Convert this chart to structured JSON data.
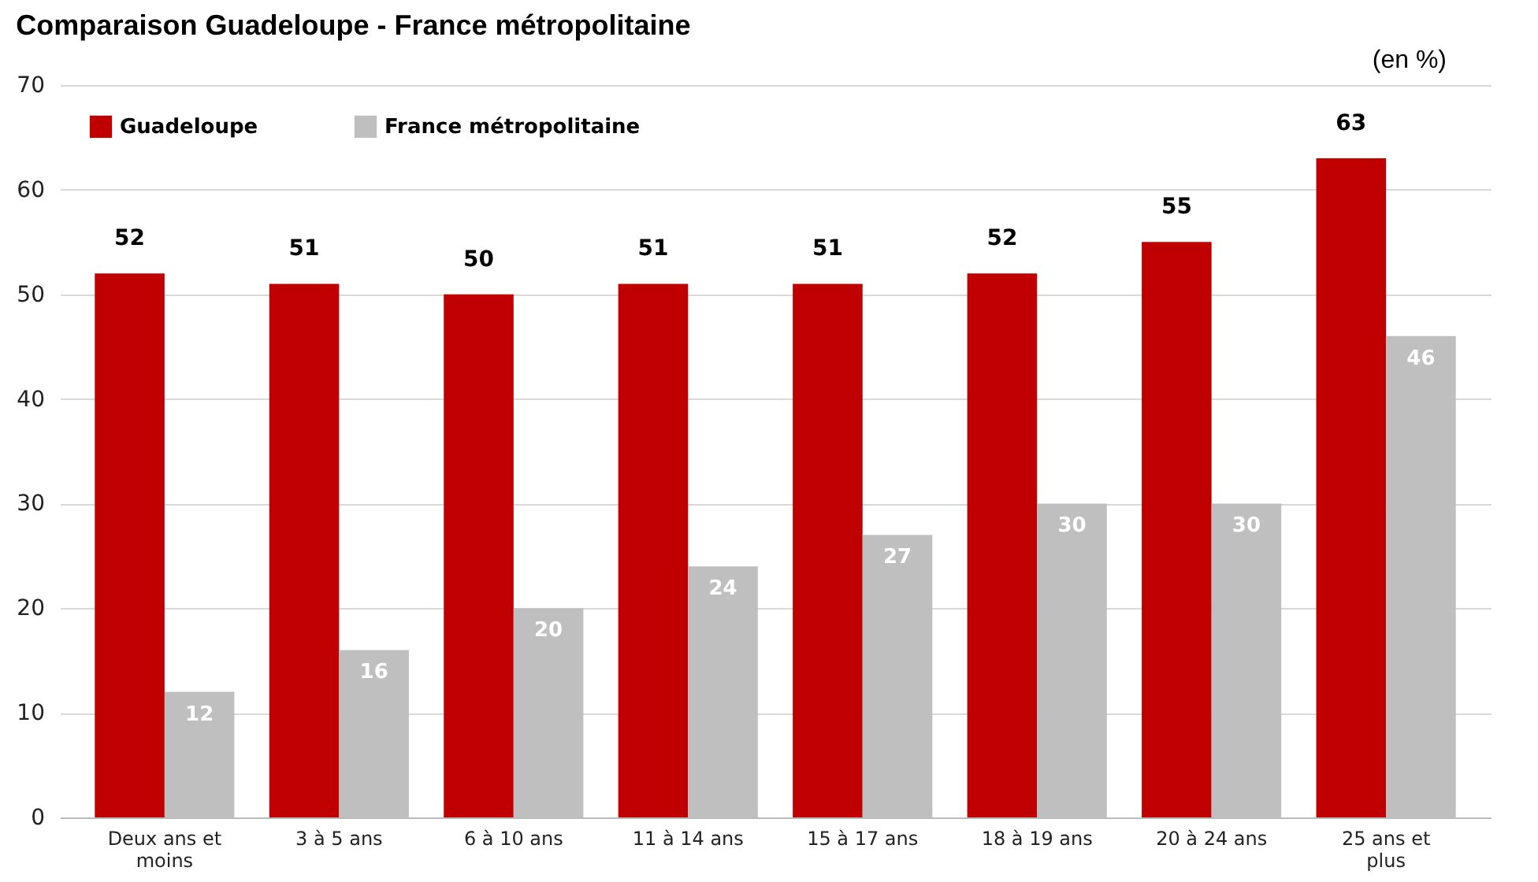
{
  "chart_data": {
    "type": "bar",
    "title": "Comparaison Guadeloupe - France métropolitaine",
    "annotations": [
      "(en %)"
    ],
    "categories": [
      "Deux ans et moins",
      "3 à 5 ans",
      "6 à 10 ans",
      "11 à 14 ans",
      "15 à 17 ans",
      "18 à 19 ans",
      "20 à 24 ans",
      "25 ans et plus"
    ],
    "series": [
      {
        "name": "Guadeloupe",
        "color": "#c00000",
        "values": [
          52,
          51,
          50,
          51,
          51,
          52,
          55,
          63
        ]
      },
      {
        "name": "France métropolitaine",
        "color": "#bfbfbf",
        "values": [
          12,
          16,
          20,
          24,
          27,
          30,
          30,
          46
        ]
      }
    ],
    "ylim": [
      0,
      70
    ],
    "yticks": [
      0,
      10,
      20,
      30,
      40,
      50,
      60,
      70
    ],
    "grid": "y",
    "legend": "top left",
    "data_labels": true
  }
}
